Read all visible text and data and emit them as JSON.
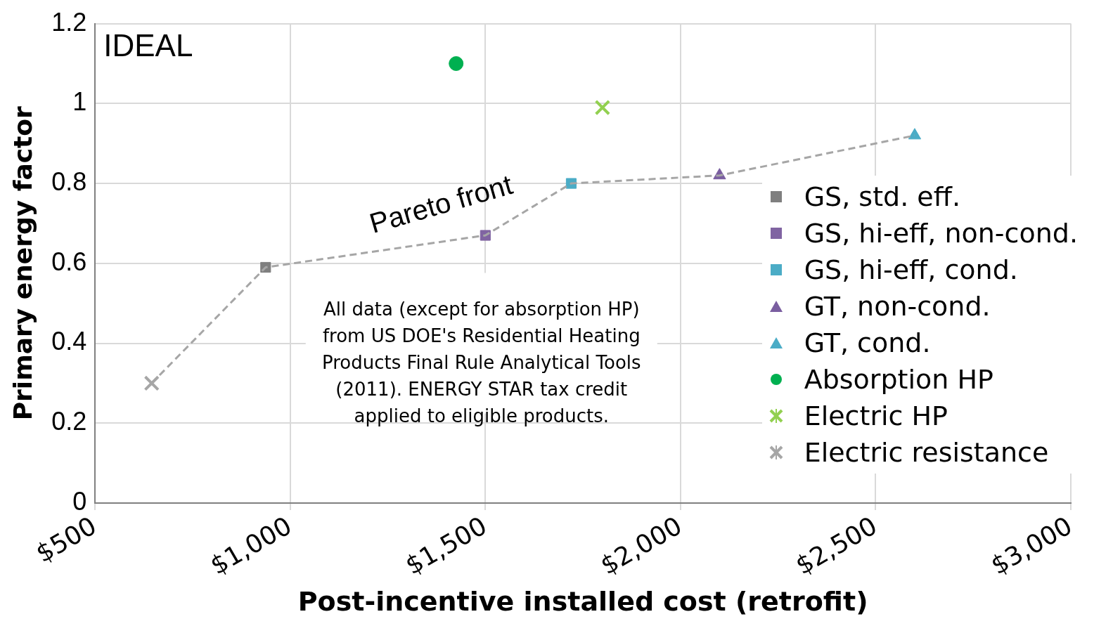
{
  "chart_data": {
    "type": "scatter",
    "xlabel": "Post-incentive installed cost (retrofit)",
    "ylabel": "Primary energy factor",
    "xlim": [
      500,
      3000
    ],
    "xticks": [
      {
        "value": 500,
        "label": "$500"
      },
      {
        "value": 1000,
        "label": "$1,000"
      },
      {
        "value": 1500,
        "label": "$1,500"
      },
      {
        "value": 2000,
        "label": "$2,000"
      },
      {
        "value": 2500,
        "label": "$2,500"
      },
      {
        "value": 3000,
        "label": "$3,000"
      }
    ],
    "ylim": [
      0,
      1.2
    ],
    "yticks": [
      0,
      0.2,
      0.4,
      0.6,
      0.8,
      1,
      1.2
    ],
    "grid": true,
    "legend": "right",
    "annotations": [
      "IDEAL",
      "Pareto front",
      "All data (except for absorption HP) from US DOE's Residential Heating Products Final Rule Analytical Tools (2011). ENERGY STAR tax credit applied to eligible products."
    ],
    "series": [
      {
        "type": "line",
        "color": "#a6a6a6",
        "line_style": "dashed",
        "marker": "none",
        "x": [
          645,
          937,
          1500,
          1720,
          2100,
          2600
        ],
        "values": [
          0.3,
          0.59,
          0.67,
          0.8,
          0.82,
          0.92
        ]
      },
      {
        "name": "GS, std. eff.",
        "color": "#7f7f7f",
        "marker": "square",
        "x": [
          937
        ],
        "values": [
          0.59
        ]
      },
      {
        "name": "GS, hi-eff, non-cond.",
        "color": "#8064a2",
        "marker": "square",
        "x": [
          1500
        ],
        "values": [
          0.67
        ]
      },
      {
        "name": "GS, hi-eff, cond.",
        "color": "#4bacc6",
        "marker": "square",
        "x": [
          1720
        ],
        "values": [
          0.8
        ]
      },
      {
        "name": "GT, non-cond.",
        "color": "#7a5ea0",
        "marker": "triangle",
        "x": [
          2100
        ],
        "values": [
          0.82
        ]
      },
      {
        "name": "GT, cond.",
        "color": "#4bacc6",
        "marker": "triangle",
        "x": [
          2600
        ],
        "values": [
          0.92
        ]
      },
      {
        "name": "Absorption HP",
        "color": "#00b050",
        "marker": "circle",
        "x": [
          1425
        ],
        "values": [
          1.1
        ]
      },
      {
        "name": "Electric HP",
        "color": "#92d050",
        "marker": "cross",
        "x": [
          1800
        ],
        "values": [
          0.99
        ]
      },
      {
        "name": "Electric resistance",
        "color": "#a6a6a6",
        "marker": "cross",
        "x": [
          645
        ],
        "values": [
          0.3
        ]
      }
    ]
  }
}
